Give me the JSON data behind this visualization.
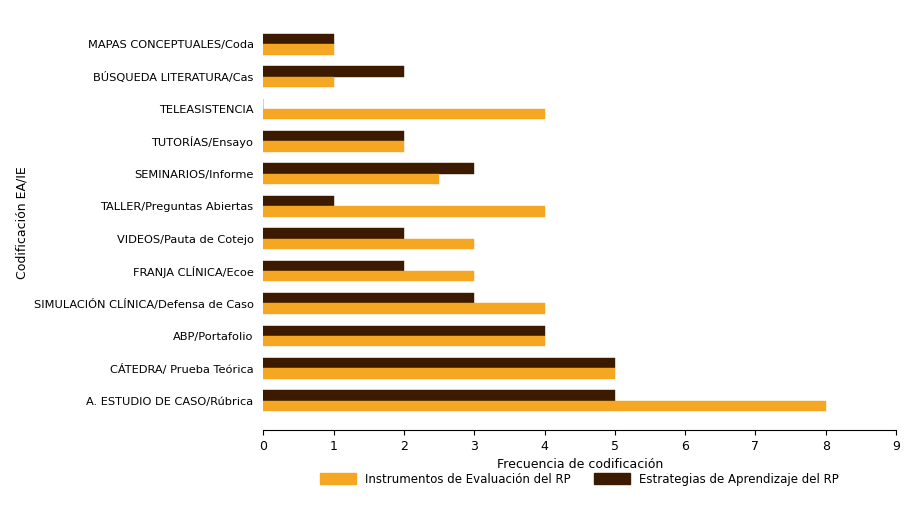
{
  "categories": [
    "A. ESTUDIO DE CASO/Rúbrica",
    "CÁTEDRA/ Prueba Teórica",
    "ABP/Portafolio",
    "SIMULACIÓN CLÍNICA/Defensa de Caso",
    "FRANJA CLÍNICA/Ecoe",
    "VIDEOS/Pauta de Cotejo",
    "TALLER/Preguntas Abiertas",
    "SEMINARIOS/Informe",
    "TUTORÍAS/Ensayo",
    "TELEASISTENCIA",
    "BÚSQUEDA LITERATURA/Cas",
    "MAPAS CONCEPTUALES/Coda"
  ],
  "estrategias": [
    5,
    5,
    4,
    3,
    2,
    2,
    1,
    3,
    2,
    0,
    2,
    1
  ],
  "instrumentos": [
    8,
    5,
    4,
    4,
    3,
    3,
    4,
    2.5,
    2,
    4,
    1,
    1
  ],
  "bar_color_estrategias": "#3b1a00",
  "bar_color_instrumentos": "#f5a623",
  "hatch_estrategias": "....",
  "hatch_instrumentos": "||||",
  "xlabel": "Frecuencia de codificación",
  "ylabel": "Codificación EA/IE",
  "xlim": [
    0,
    9
  ],
  "xticks": [
    0,
    1,
    2,
    3,
    4,
    5,
    6,
    7,
    8,
    9
  ],
  "legend_instrumentos": "Instrumentos de Evaluación del RP",
  "legend_estrategias": "Estrategias de Aprendizaje del RP",
  "bar_height": 0.32,
  "figsize": [
    9.15,
    5.31
  ],
  "dpi": 100
}
